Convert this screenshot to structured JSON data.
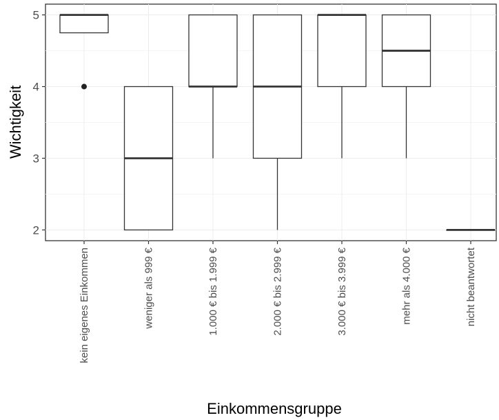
{
  "chart_data": {
    "type": "boxplot",
    "xlabel": "Einkommensgruppe",
    "ylabel": "Wichtigkeit",
    "ylim": [
      1.85,
      5.15
    ],
    "yticks": [
      2,
      3,
      4,
      5
    ],
    "grid": true,
    "categories": [
      "kein eigenes Einkommen",
      "weniger als 999 €",
      "1.000 € bis 1.999 €",
      "2.000 € bis 2.999 €",
      "3.000 € bis 3.999 €",
      "mehr als 4.000 €",
      "nicht beantwortet"
    ],
    "boxes": [
      {
        "q1": 4.75,
        "median": 5,
        "q3": 5,
        "whisker_low": 4.75,
        "whisker_high": 5,
        "outliers": [
          4
        ]
      },
      {
        "q1": 2,
        "median": 3,
        "q3": 4,
        "whisker_low": 2,
        "whisker_high": 4,
        "outliers": []
      },
      {
        "q1": 4,
        "median": 4,
        "q3": 5,
        "whisker_low": 3,
        "whisker_high": 5,
        "outliers": []
      },
      {
        "q1": 3,
        "median": 4,
        "q3": 5,
        "whisker_low": 2,
        "whisker_high": 5,
        "outliers": []
      },
      {
        "q1": 4,
        "median": 5,
        "q3": 5,
        "whisker_low": 3,
        "whisker_high": 5,
        "outliers": []
      },
      {
        "q1": 4,
        "median": 4.5,
        "q3": 5,
        "whisker_low": 3,
        "whisker_high": 5,
        "outliers": []
      },
      {
        "q1": 2,
        "median": 2,
        "q3": 2,
        "whisker_low": 2,
        "whisker_high": 2,
        "outliers": []
      }
    ]
  }
}
